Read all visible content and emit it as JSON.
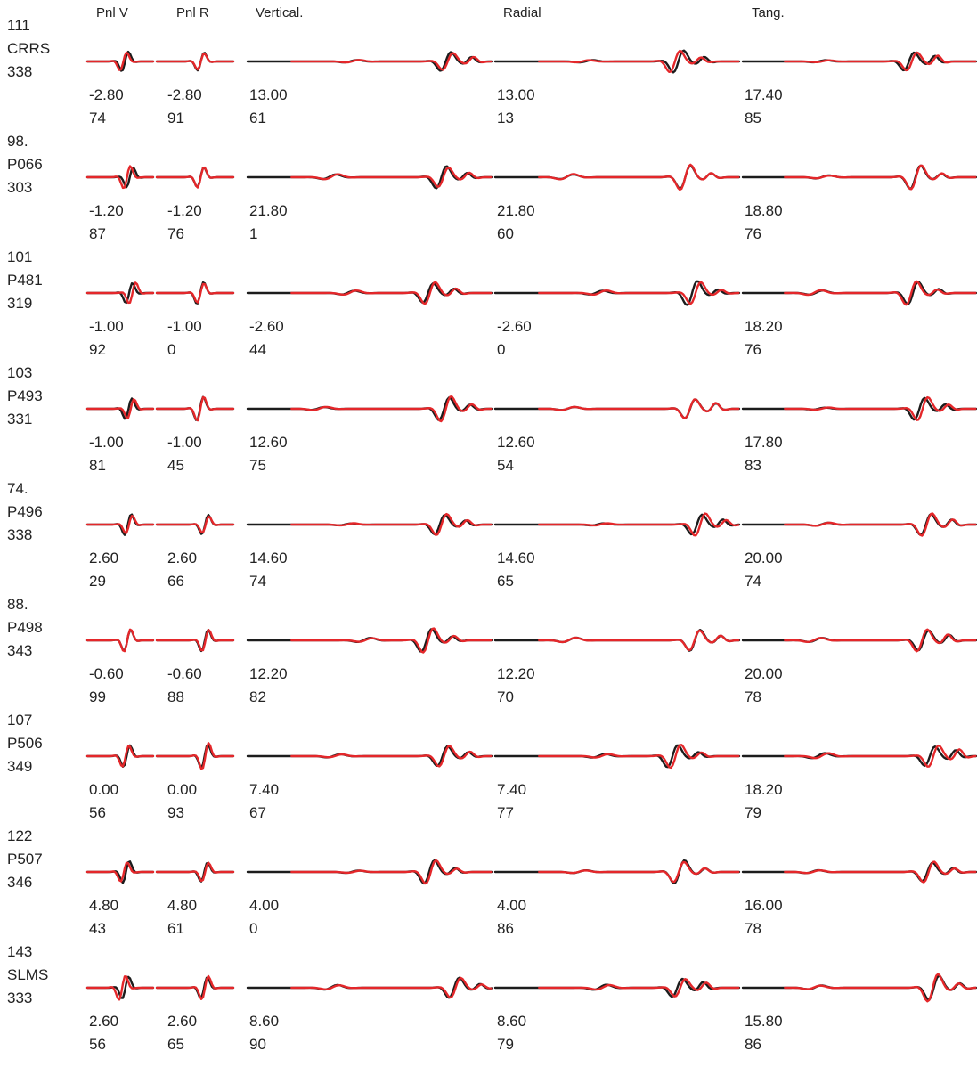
{
  "headers": [
    "Pnl V",
    "Pnl R",
    "Vertical.",
    "Radial",
    "Tang."
  ],
  "colors": {
    "observed": "#1c1c1c",
    "synthetic": "#e4272a"
  },
  "stations": [
    {
      "line1": "111",
      "name": "CRRS",
      "line3": "338",
      "shifts": [
        "-2.80",
        "-2.80",
        "13.00",
        "13.00",
        "17.40"
      ],
      "ccs": [
        "74",
        "91",
        "61",
        "13",
        "85"
      ]
    },
    {
      "line1": "98.",
      "name": "P066",
      "line3": "303",
      "shifts": [
        "-1.20",
        "-1.20",
        "21.80",
        "21.80",
        "18.80"
      ],
      "ccs": [
        "87",
        "76",
        "1",
        "60",
        "76"
      ]
    },
    {
      "line1": "101",
      "name": "P481",
      "line3": "319",
      "shifts": [
        "-1.00",
        "-1.00",
        "-2.60",
        "-2.60",
        "18.20"
      ],
      "ccs": [
        "92",
        "0",
        "44",
        "0",
        "76"
      ]
    },
    {
      "line1": "103",
      "name": "P493",
      "line3": "331",
      "shifts": [
        "-1.00",
        "-1.00",
        "12.60",
        "12.60",
        "17.80"
      ],
      "ccs": [
        "81",
        "45",
        "75",
        "54",
        "83"
      ]
    },
    {
      "line1": "74.",
      "name": "P496",
      "line3": "338",
      "shifts": [
        "2.60",
        "2.60",
        "14.60",
        "14.60",
        "20.00"
      ],
      "ccs": [
        "29",
        "66",
        "74",
        "65",
        "74"
      ]
    },
    {
      "line1": "88.",
      "name": "P498",
      "line3": "343",
      "shifts": [
        "-0.60",
        "-0.60",
        "12.20",
        "12.20",
        "20.00"
      ],
      "ccs": [
        "99",
        "88",
        "82",
        "70",
        "78"
      ]
    },
    {
      "line1": "107",
      "name": "P506",
      "line3": "349",
      "shifts": [
        "0.00",
        "0.00",
        "7.40",
        "7.40",
        "18.20"
      ],
      "ccs": [
        "56",
        "93",
        "67",
        "77",
        "79"
      ]
    },
    {
      "line1": "122",
      "name": "P507",
      "line3": "346",
      "shifts": [
        "4.80",
        "4.80",
        "4.00",
        "4.00",
        "16.00"
      ],
      "ccs": [
        "43",
        "61",
        "0",
        "86",
        "78"
      ]
    },
    {
      "line1": "143",
      "name": "SLMS",
      "line3": "333",
      "shifts": [
        "2.60",
        "2.60",
        "8.60",
        "8.60",
        "15.80"
      ],
      "ccs": [
        "56",
        "65",
        "90",
        "79",
        "86"
      ]
    }
  ]
}
